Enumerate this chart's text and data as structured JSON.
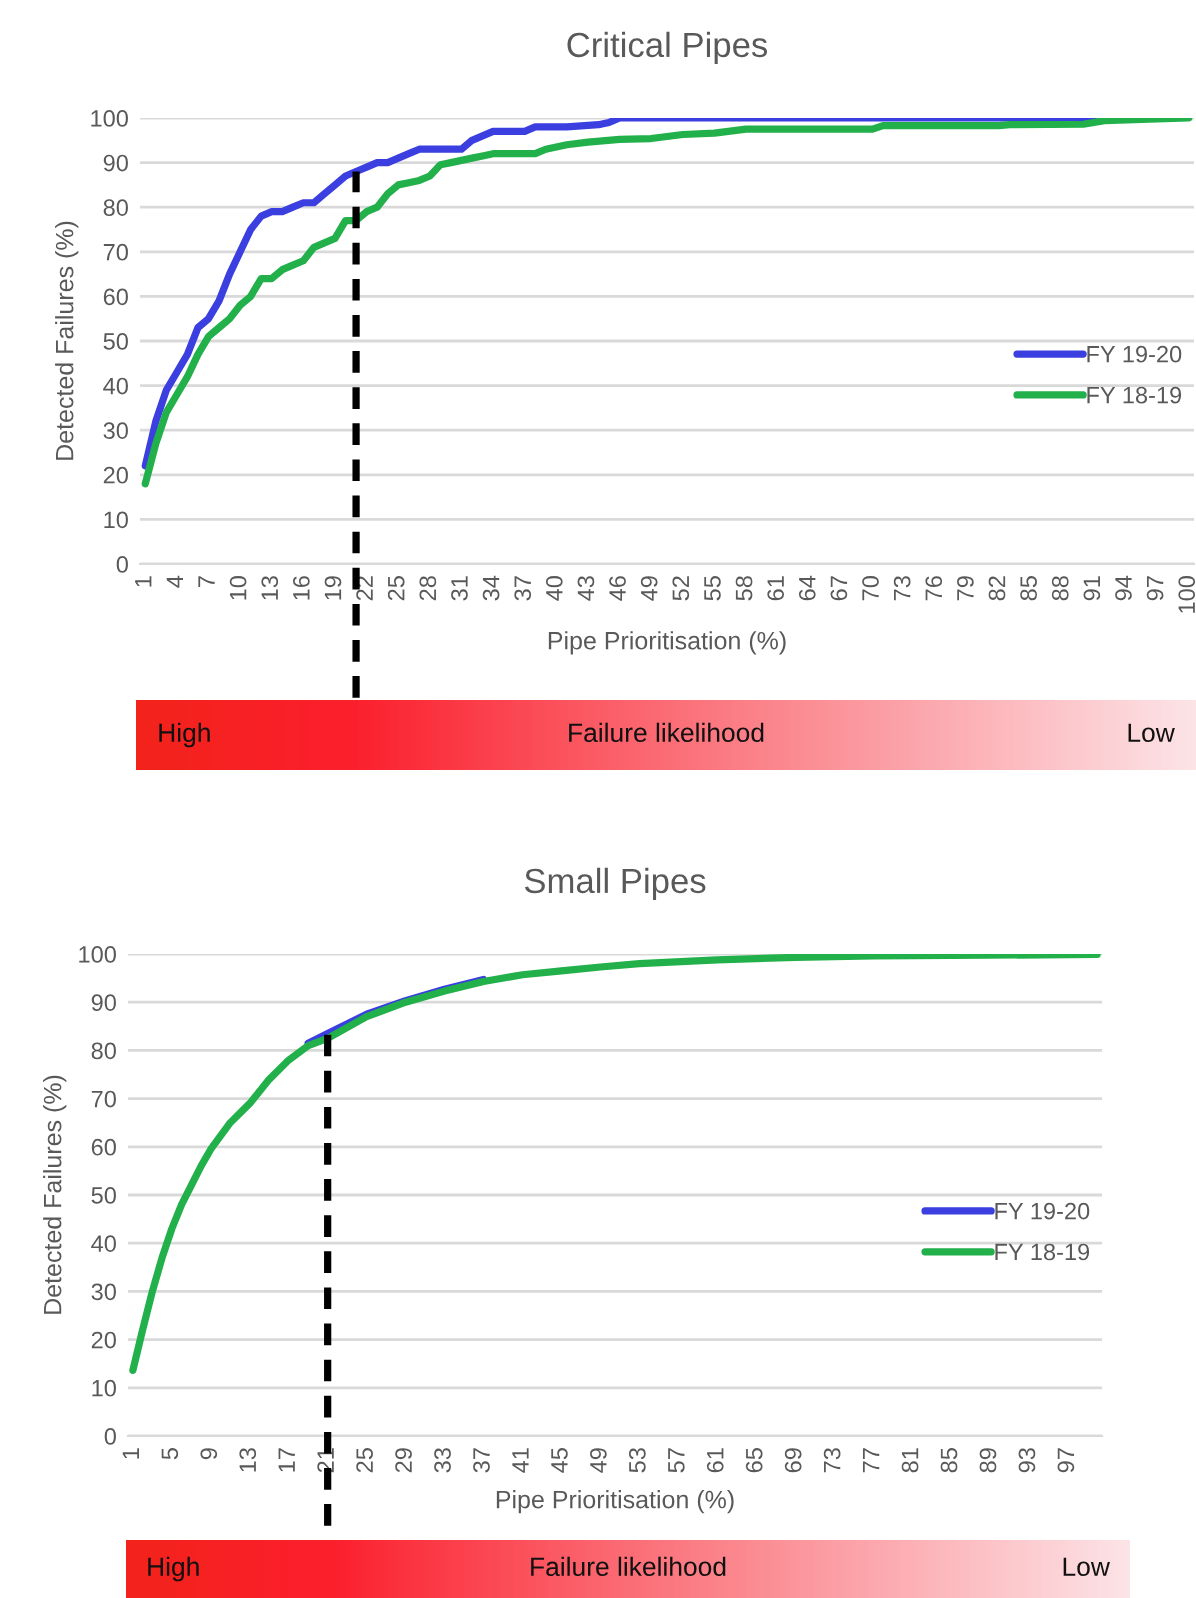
{
  "chart_data": [
    {
      "type": "line",
      "title": "Critical Pipes",
      "xlabel": "Pipe Prioritisation (%)",
      "ylabel": "Detected Failures (%)",
      "xlim": [
        0.5,
        100.5
      ],
      "xticks": [
        1,
        4,
        7,
        10,
        13,
        16,
        19,
        22,
        25,
        28,
        31,
        34,
        37,
        40,
        43,
        46,
        49,
        52,
        55,
        58,
        61,
        64,
        67,
        70,
        73,
        76,
        79,
        82,
        85,
        88,
        91,
        94,
        97,
        100
      ],
      "ylim": [
        0,
        100
      ],
      "yticks": [
        0,
        10,
        20,
        30,
        40,
        50,
        60,
        70,
        80,
        90,
        100
      ],
      "grid": "y",
      "legend": "right",
      "series": [
        {
          "name": "FY 19-20",
          "color": "#3b3fe0",
          "x": [
            1,
            2,
            3,
            4,
            5,
            6,
            7,
            8,
            9,
            10,
            11,
            12,
            13,
            14,
            15,
            16,
            17,
            18,
            19,
            20,
            21,
            22,
            23,
            24,
            25,
            26,
            27,
            28,
            31,
            32,
            33,
            34,
            37,
            38,
            41,
            44,
            45,
            46,
            60,
            80,
            91
          ],
          "values": [
            22,
            32,
            39,
            43,
            47,
            53,
            55,
            59,
            65,
            70,
            75,
            78,
            79,
            79,
            80,
            81,
            81,
            83,
            85,
            87,
            88,
            89,
            90,
            90,
            91,
            92,
            93,
            93,
            93,
            95,
            96,
            97,
            97,
            98,
            98,
            98.5,
            99,
            100,
            100,
            100,
            100
          ]
        },
        {
          "name": "FY 18-19",
          "color": "#22b04b",
          "x": [
            1,
            2,
            3,
            4,
            5,
            6,
            7,
            8,
            9,
            10,
            11,
            12,
            13,
            14,
            15,
            16,
            17,
            18,
            19,
            20,
            21,
            22,
            23,
            24,
            25,
            26,
            27,
            28,
            29,
            30,
            31,
            32,
            33,
            34,
            38,
            39,
            40,
            41,
            43,
            46,
            49,
            52,
            55,
            58,
            70,
            71,
            82,
            83,
            90,
            92,
            97,
            100
          ],
          "values": [
            18,
            27,
            34,
            38,
            42,
            47,
            51,
            53,
            55,
            58,
            60,
            64,
            64,
            66,
            67,
            68,
            71,
            72,
            73,
            77,
            77,
            79,
            80,
            83,
            85,
            85.5,
            86,
            87,
            89.5,
            90,
            90.5,
            91,
            91.5,
            92,
            92,
            93,
            93.5,
            94,
            94.6,
            95.2,
            95.4,
            96.3,
            96.6,
            97.5,
            97.5,
            98.3,
            98.3,
            98.5,
            98.6,
            99.4,
            99.8,
            100
          ]
        }
      ],
      "ref_lines": [
        {
          "axis": "x",
          "value": 21,
          "color": "#000000",
          "line_style": "dashed"
        }
      ],
      "annotations": [
        "High",
        "Failure likelihood",
        "Low"
      ]
    },
    {
      "type": "line",
      "title": "Small Pipes",
      "xlabel": "Pipe Prioritisation (%)",
      "ylabel": "Detected Failures (%)",
      "xlim": [
        0.5,
        100.5
      ],
      "xticks": [
        1,
        5,
        9,
        13,
        17,
        21,
        25,
        29,
        33,
        37,
        41,
        45,
        49,
        53,
        57,
        61,
        65,
        69,
        73,
        77,
        81,
        85,
        89,
        93,
        97
      ],
      "ylim": [
        0,
        100
      ],
      "yticks": [
        0,
        10,
        20,
        30,
        40,
        50,
        60,
        70,
        80,
        90,
        100
      ],
      "grid": "y",
      "legend": "right",
      "series": [
        {
          "name": "FY 19-20",
          "color": "#3b3fe0",
          "x": [
            19,
            21,
            25,
            29,
            33,
            37
          ],
          "values": [
            81.5,
            83.5,
            87.5,
            90.3,
            92.7,
            94.7
          ]
        },
        {
          "name": "FY 18-19",
          "color": "#22b04b",
          "x": [
            1,
            2,
            3,
            4,
            5,
            6,
            7,
            8,
            9,
            11,
            13,
            15,
            17,
            19,
            21,
            25,
            29,
            33,
            37,
            41,
            45,
            49,
            53,
            61,
            69,
            77,
            85,
            100
          ],
          "values": [
            13.6,
            22,
            30,
            37,
            43,
            48,
            52,
            56,
            59.5,
            65,
            69,
            74,
            78,
            81,
            82.5,
            87,
            90,
            92.3,
            94.3,
            95.7,
            96.5,
            97.3,
            98,
            98.8,
            99.3,
            99.6,
            99.7,
            99.9
          ]
        }
      ],
      "ref_lines": [
        {
          "axis": "x",
          "value": 21,
          "color": "#000000",
          "line_style": "dashed"
        }
      ],
      "annotations": [
        "High",
        "Failure likelihood",
        "Low"
      ]
    }
  ]
}
